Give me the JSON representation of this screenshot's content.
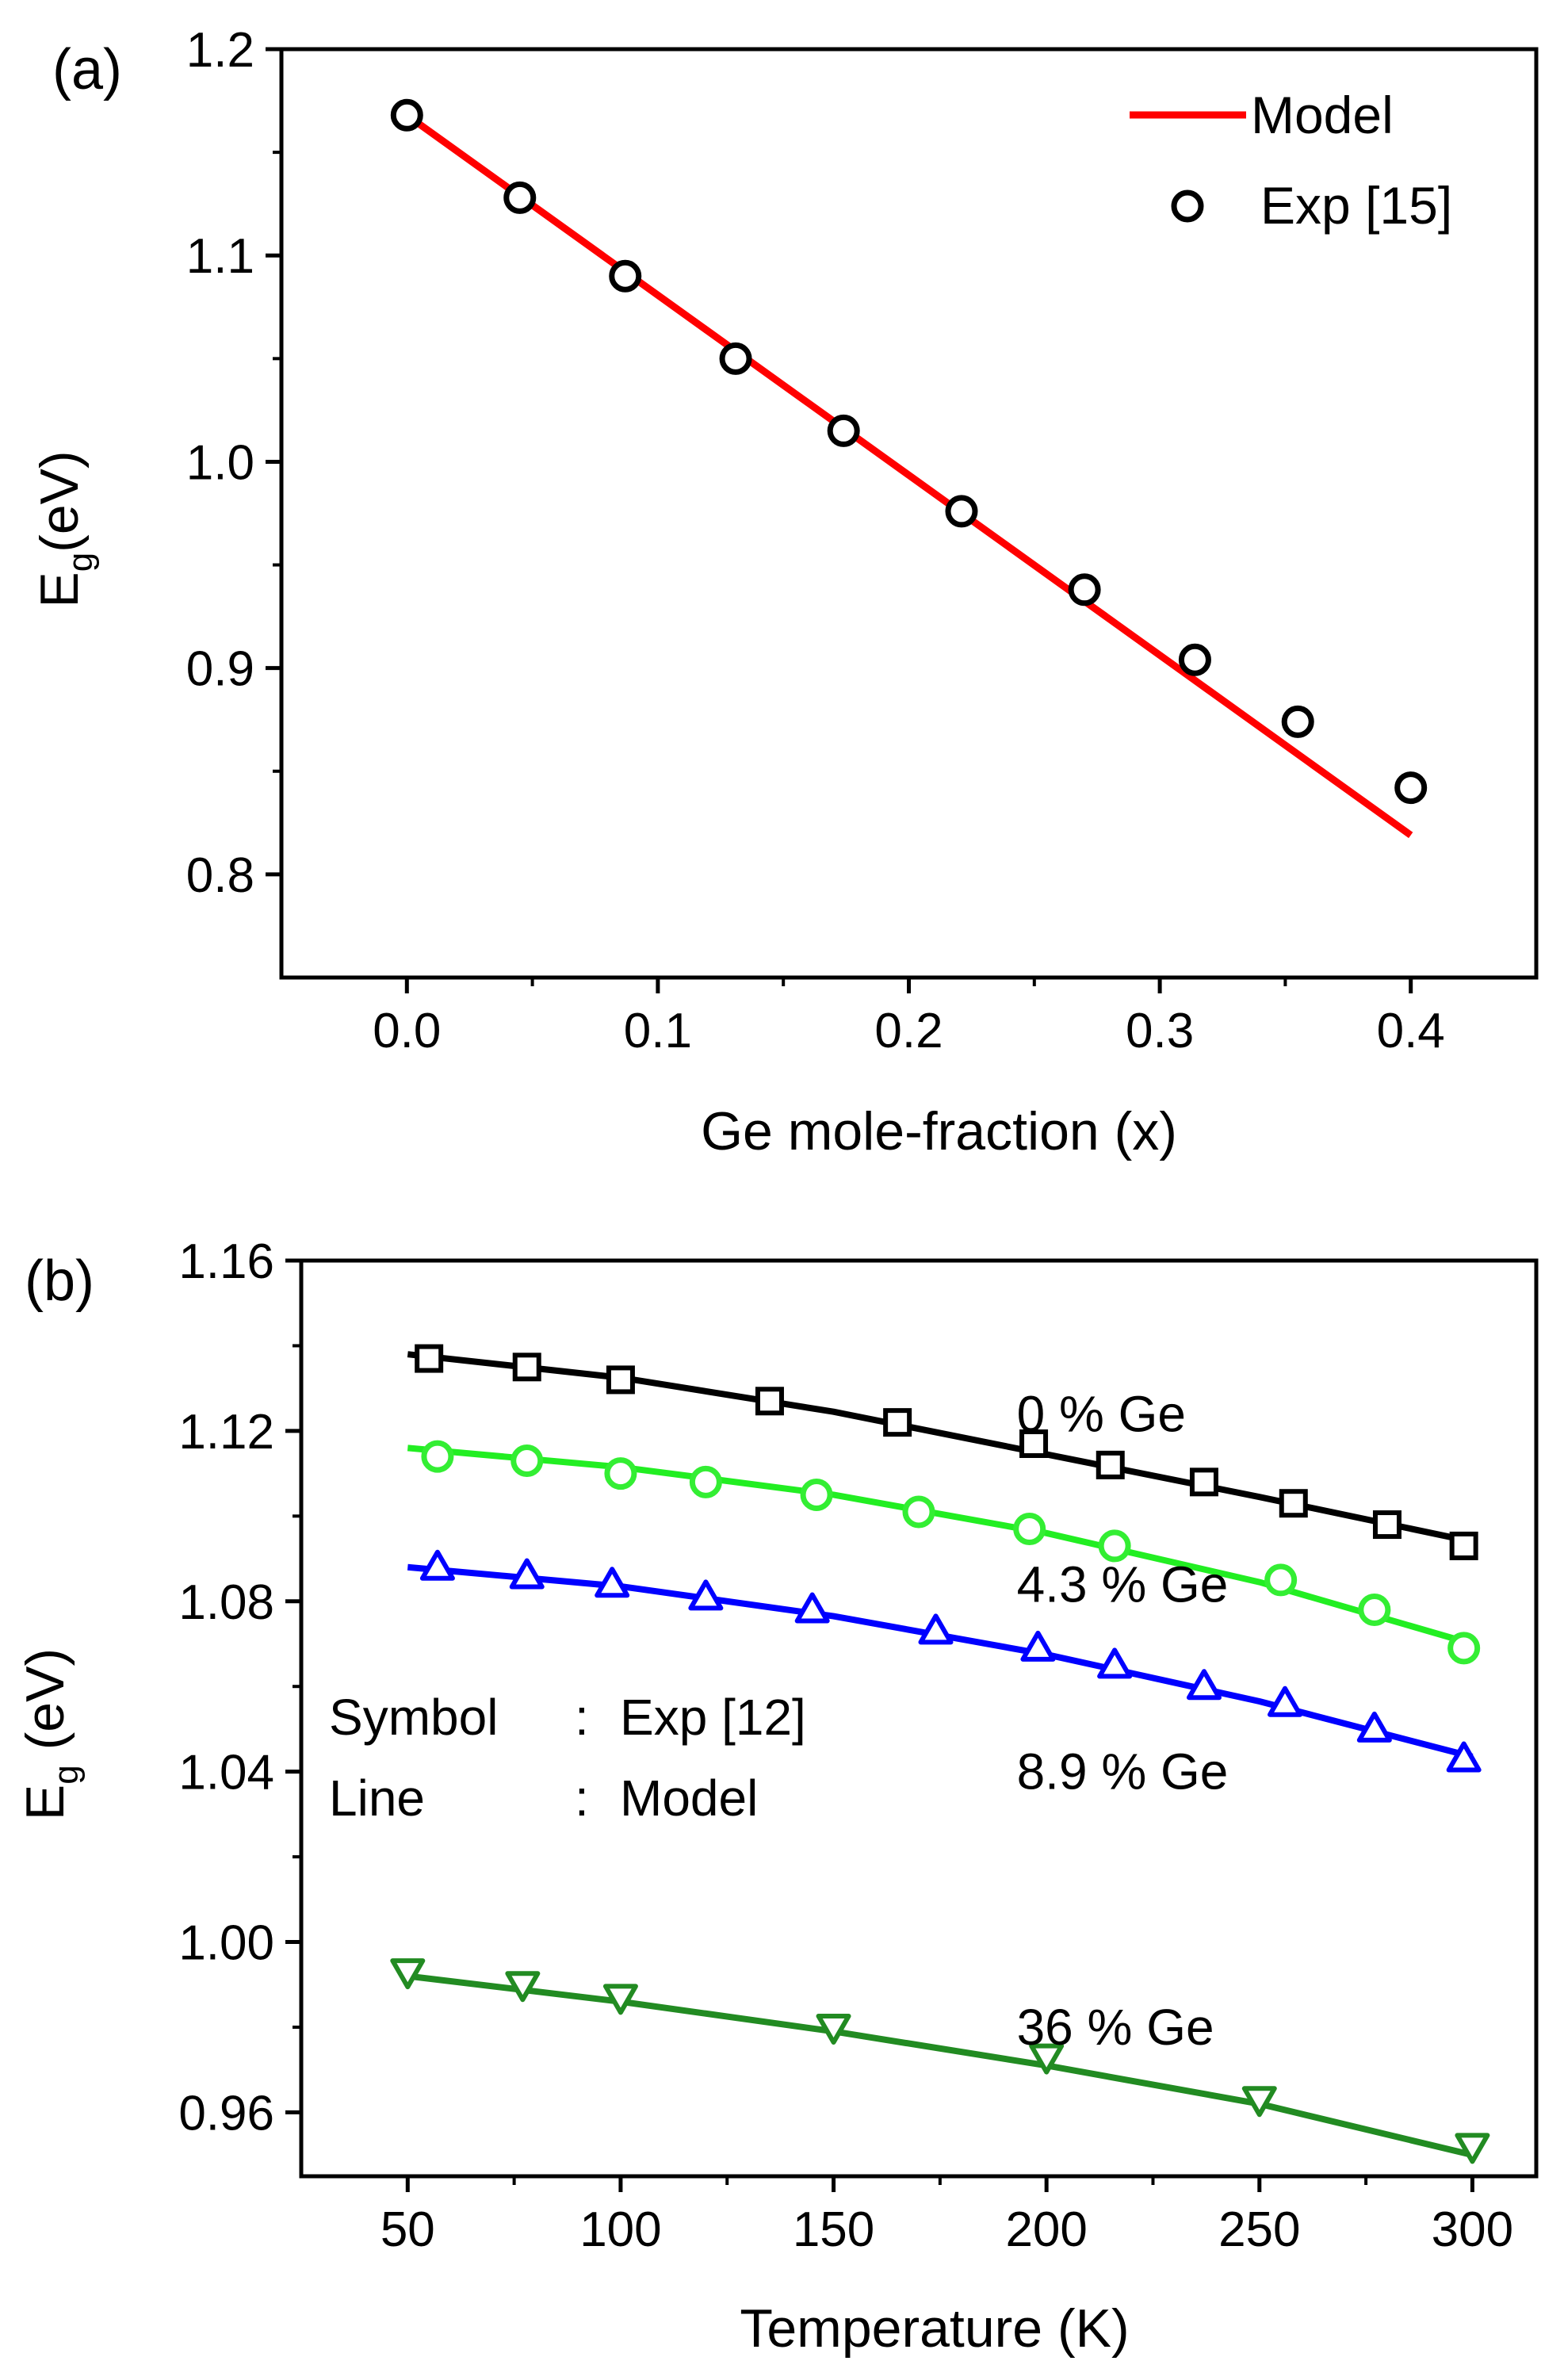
{
  "chart_data": [
    {
      "type": "line",
      "panel_label": "(a)",
      "title": "",
      "xlabel": "Ge mole-fraction (x)",
      "ylabel": {
        "main": "E",
        "sub": "g",
        "rest": "(eV)"
      },
      "xlim": [
        -0.05,
        0.45
      ],
      "ylim": [
        0.75,
        1.2
      ],
      "xticks": [
        0.0,
        0.1,
        0.2,
        0.3,
        0.4
      ],
      "xtick_labels": [
        "0.0",
        "0.1",
        "0.2",
        "0.3",
        "0.4"
      ],
      "yticks": [
        0.8,
        0.9,
        1.0,
        1.1,
        1.2
      ],
      "ytick_labels": [
        "0.8",
        "0.9",
        "1.0",
        "1.1",
        "1.2"
      ],
      "grid": false,
      "legend_position": "top-right",
      "series": [
        {
          "name": "Model",
          "style": "line",
          "color": "#ff0000",
          "x": [
            0.0,
            0.4
          ],
          "y": [
            1.168,
            0.819
          ]
        },
        {
          "name": "Exp [15]",
          "style": "markers",
          "marker": "circle",
          "color": "#000000",
          "x": [
            0.0,
            0.045,
            0.087,
            0.131,
            0.174,
            0.221,
            0.27,
            0.314,
            0.355,
            0.4
          ],
          "y": [
            1.168,
            1.128,
            1.09,
            1.05,
            1.015,
            0.976,
            0.938,
            0.904,
            0.874,
            0.842
          ]
        }
      ]
    },
    {
      "type": "line",
      "panel_label": "(b)",
      "title": "",
      "xlabel": "Temperature (K)",
      "ylabel": {
        "main": "E",
        "sub": "g",
        "rest": " (eV)"
      },
      "xlim": [
        25,
        315
      ],
      "ylim": [
        0.945,
        1.16
      ],
      "xticks": [
        50,
        100,
        150,
        200,
        250,
        300
      ],
      "xtick_labels": [
        "50",
        "100",
        "150",
        "200",
        "250",
        "300"
      ],
      "yticks": [
        0.96,
        1.0,
        1.04,
        1.08,
        1.12,
        1.16
      ],
      "ytick_labels": [
        "0.96",
        "1.00",
        "1.04",
        "1.08",
        "1.12",
        "1.16"
      ],
      "grid": false,
      "annotations": [
        {
          "text": "0 % Ge",
          "x": 193,
          "y": 1.124
        },
        {
          "text": "4.3 % Ge",
          "x": 193,
          "y": 1.084
        },
        {
          "text": "8.9 % Ge",
          "x": 193,
          "y": 1.04
        },
        {
          "text": "36 % Ge",
          "x": 193,
          "y": 0.98
        }
      ],
      "note_lines": [
        {
          "key": "Symbol",
          "sep": ":",
          "value": "Exp [12]"
        },
        {
          "key": "Line",
          "sep": ":",
          "value": "Model"
        }
      ],
      "series": [
        {
          "name": "0 % Ge",
          "model": {
            "color": "#000000",
            "x": [
              50,
              100,
              150,
              200,
              250,
              300
            ],
            "y": [
              1.138,
              1.1325,
              1.1245,
              1.1145,
              1.1045,
              1.094
            ]
          },
          "exp": {
            "marker": "square",
            "color": "#000000",
            "x": [
              55,
              78,
              100,
              135,
              165,
              197,
              215,
              237,
              258,
              280,
              298
            ],
            "y": [
              1.137,
              1.135,
              1.132,
              1.127,
              1.122,
              1.117,
              1.112,
              1.108,
              1.103,
              1.098,
              1.093
            ]
          }
        },
        {
          "name": "4.3 % Ge",
          "model": {
            "color": "#22ee22",
            "x": [
              50,
              100,
              150,
              200,
              250,
              300
            ],
            "y": [
              1.116,
              1.1115,
              1.105,
              1.096,
              1.0845,
              1.07
            ]
          },
          "exp": {
            "marker": "circle",
            "color": "#33ee33",
            "x": [
              57,
              78,
              100,
              120,
              146,
              170,
              196,
              216,
              255,
              277,
              298
            ],
            "y": [
              1.114,
              1.113,
              1.11,
              1.108,
              1.105,
              1.101,
              1.097,
              1.093,
              1.085,
              1.078,
              1.069
            ]
          }
        },
        {
          "name": "8.9 % Ge",
          "model": {
            "color": "#0000ff",
            "x": [
              50,
              100,
              150,
              200,
              250,
              300
            ],
            "y": [
              1.088,
              1.0835,
              1.0765,
              1.0675,
              1.0565,
              1.0435
            ]
          },
          "exp": {
            "marker": "triangle-up",
            "color": "#0000ff",
            "x": [
              57,
              78,
              98,
              120,
              145,
              174,
              198,
              216,
              237,
              256,
              277,
              298
            ],
            "y": [
              1.088,
              1.086,
              1.084,
              1.081,
              1.078,
              1.073,
              1.069,
              1.065,
              1.06,
              1.056,
              1.05,
              1.043
            ]
          }
        },
        {
          "name": "36 % Ge",
          "model": {
            "color": "#228b22",
            "x": [
              50,
              100,
              150,
              200,
              250,
              300
            ],
            "y": [
              0.992,
              0.986,
              0.979,
              0.971,
              0.962,
              0.95
            ]
          },
          "exp": {
            "marker": "triangle-down",
            "color": "#228b22",
            "x": [
              50,
              77,
              100,
              150,
              200,
              250,
              300
            ],
            "y": [
              0.993,
              0.99,
              0.987,
              0.98,
              0.973,
              0.963,
              0.952
            ]
          }
        }
      ]
    }
  ]
}
